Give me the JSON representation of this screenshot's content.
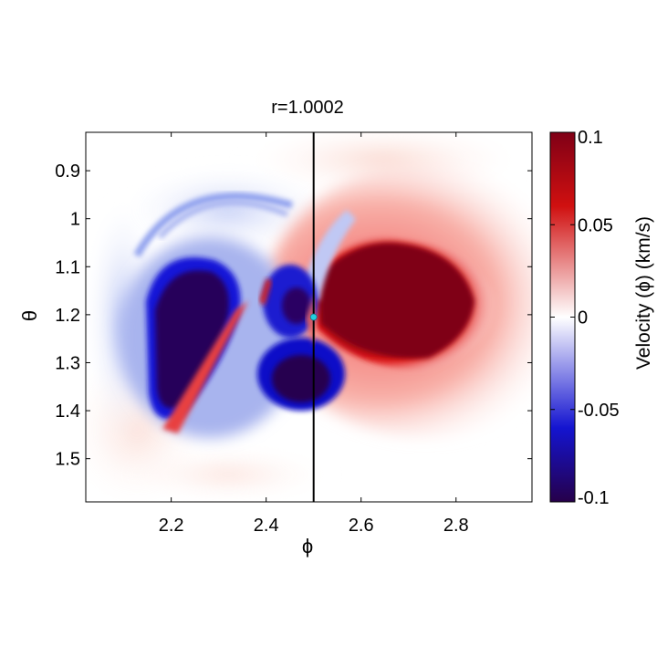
{
  "chart_data": {
    "type": "heatmap",
    "title": "r=1.0002",
    "xlabel": "ϕ",
    "ylabel": "θ",
    "x_ticks": [
      2.2,
      2.4,
      2.6,
      2.8
    ],
    "x_tick_labels": [
      "2.2",
      "2.4",
      "2.6",
      "2.8"
    ],
    "y_ticks": [
      0.9,
      1.0,
      1.1,
      1.2,
      1.3,
      1.4,
      1.5
    ],
    "y_tick_labels": [
      "0.9",
      "1",
      "1.1",
      "1.2",
      "1.3",
      "1.4",
      "1.5"
    ],
    "xlim": [
      2.02,
      2.96
    ],
    "ylim": [
      0.82,
      1.59
    ],
    "y_axis_inverted": true,
    "colorbar": {
      "label": "Velocity (ϕ) (km/s)",
      "range": [
        -0.1,
        0.1
      ],
      "ticks": [
        0.1,
        0.05,
        0,
        -0.05,
        -0.1
      ],
      "tick_labels": [
        "0.1",
        "0.05",
        "0",
        "-0.05",
        "-0.1"
      ],
      "colormap": "blue-white-red",
      "colors": {
        "min": "#260047",
        "low": "#1f1fd8",
        "mid": "#ffffff",
        "high": "#e01010",
        "max": "#7f0016"
      }
    },
    "vertical_line_x": 2.5,
    "marker": {
      "x": 2.5,
      "y": 1.205,
      "color": "#20d0e0"
    },
    "features": [
      {
        "x": 2.24,
        "y": 1.25,
        "value": -0.1
      },
      {
        "x": 2.48,
        "y": 1.4,
        "value": -0.1
      },
      {
        "x": 2.47,
        "y": 1.25,
        "value": -0.08
      },
      {
        "x": 2.3,
        "y": 1.32,
        "value": 0.05
      },
      {
        "x": 2.66,
        "y": 1.24,
        "value": 0.1
      },
      {
        "x": 2.86,
        "y": 1.24,
        "value": 0.04
      },
      {
        "x": 2.3,
        "y": 0.88,
        "value": 0.01
      }
    ]
  }
}
